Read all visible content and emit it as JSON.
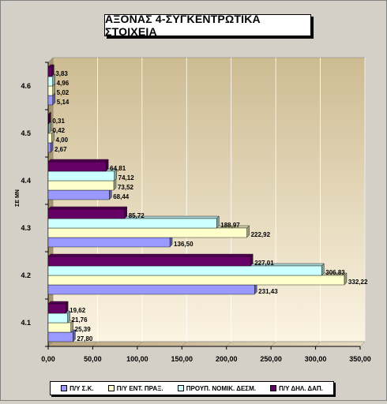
{
  "chart_data": {
    "type": "bar",
    "orientation": "horizontal",
    "title": "ΑΞΟΝΑΣ 4-ΣΥΓΚΕΝΤΡΩΤΙΚΑ ΣΤΟΙΧΕΙΑ",
    "ylabel": "ΣΕ ΜΝ",
    "xlabel": "",
    "categories": [
      "4.1",
      "4.2",
      "4.3",
      "4.4",
      "4.5",
      "4.6"
    ],
    "xlim": [
      0,
      350
    ],
    "xticks": [
      "0,00",
      "50,00",
      "100,00",
      "150,00",
      "200,00",
      "250,00",
      "300,00",
      "350,00"
    ],
    "grid": true,
    "legend_position": "bottom",
    "series": [
      {
        "name": "Π/Υ Σ.Κ.",
        "color": "#9999ff",
        "values": [
          27.8,
          231.43,
          136.5,
          68.44,
          2.67,
          5.14
        ],
        "labels": [
          "27,80",
          "231,43",
          "136,50",
          "68,44",
          "2,67",
          "5,14"
        ]
      },
      {
        "name": "Π/Υ ΕΝΤ. ΠΡΑΞ.",
        "color": "#ffffcc",
        "values": [
          25.39,
          332.22,
          222.92,
          73.52,
          4.0,
          5.02
        ],
        "labels": [
          "25,39",
          "332,22",
          "222,92",
          "73,52",
          "4,00",
          "5,02"
        ]
      },
      {
        "name": "ΠΡΟΥΠ. ΝΟΜΙΚ. ΔΕΣΜ.",
        "color": "#ccffff",
        "values": [
          21.76,
          306.83,
          188.97,
          74.12,
          0.42,
          4.96
        ],
        "labels": [
          "21,76",
          "306,83",
          "188,97",
          "74,12",
          "0,42",
          "4,96"
        ]
      },
      {
        "name": "Π/Υ ΔΗΛ. ΔΑΠ.",
        "color": "#660066",
        "values": [
          19.62,
          227.01,
          85.72,
          64.81,
          0.31,
          3.83
        ],
        "labels": [
          "19,62",
          "227,01",
          "85,72",
          "64,81",
          "0,31",
          "3,83"
        ]
      }
    ]
  }
}
